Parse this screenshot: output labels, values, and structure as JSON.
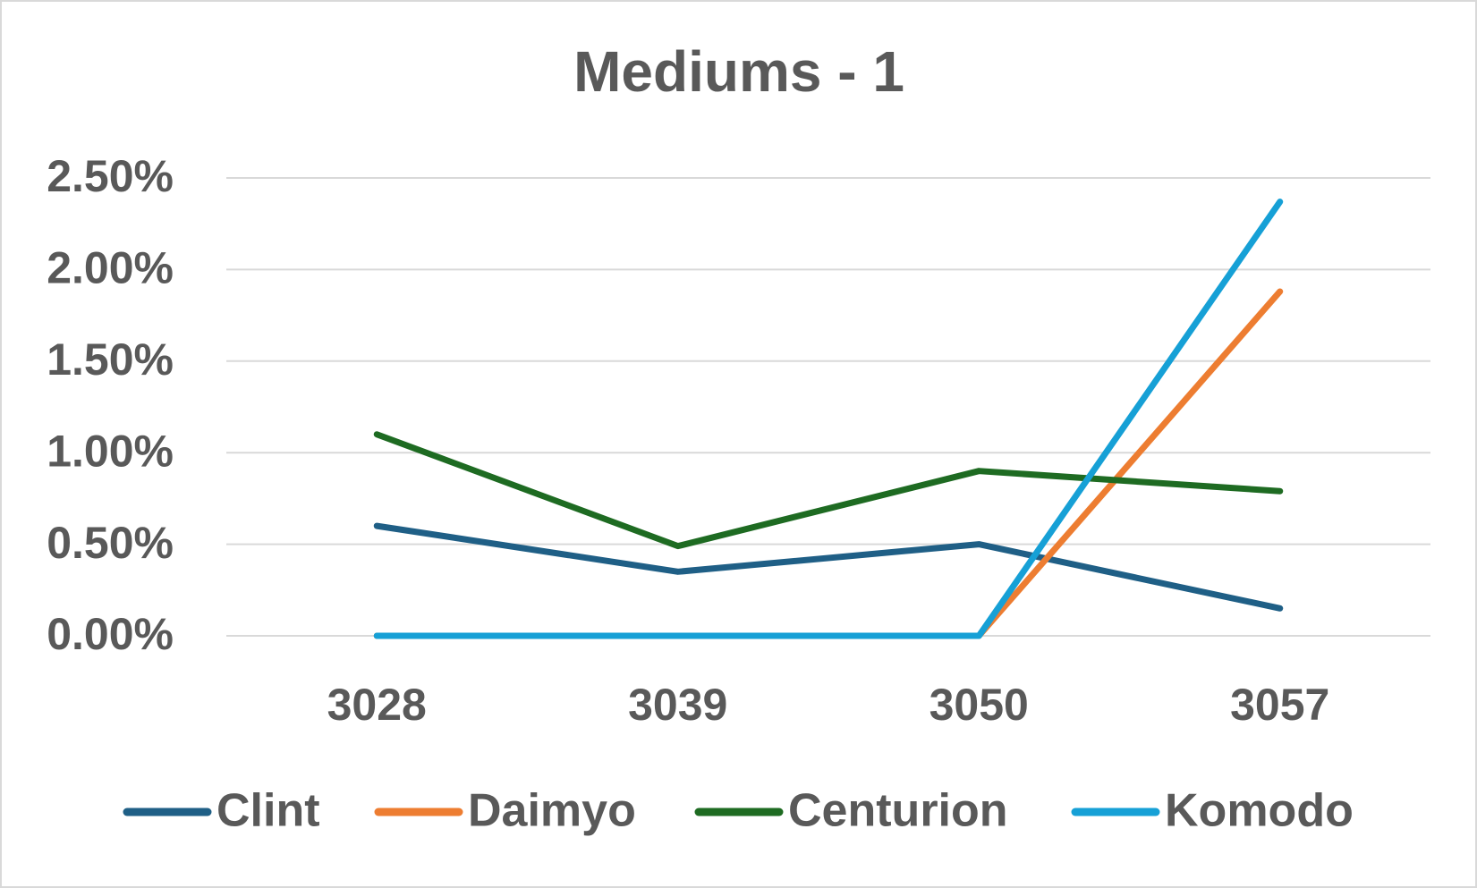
{
  "chart_data": {
    "type": "line",
    "title": "Mediums - 1",
    "categories": [
      "3028",
      "3039",
      "3050",
      "3057"
    ],
    "series": [
      {
        "name": "Clint",
        "color": "#1f5f86",
        "values": [
          0.6,
          0.35,
          0.5,
          0.15
        ]
      },
      {
        "name": "Daimyo",
        "color": "#ed7d31",
        "values": [
          0,
          0,
          0,
          1.88
        ]
      },
      {
        "name": "Centurion",
        "color": "#1e6b22",
        "values": [
          1.1,
          0.49,
          0.9,
          0.79
        ]
      },
      {
        "name": "Komodo",
        "color": "#16a0d6",
        "values": [
          0,
          0,
          0,
          2.37
        ]
      }
    ],
    "ylim": [
      0,
      2.5
    ],
    "yticks": [
      {
        "value": 0,
        "label": "0.00%"
      },
      {
        "value": 0.5,
        "label": "0.50%"
      },
      {
        "value": 1,
        "label": "1.00%"
      },
      {
        "value": 1.5,
        "label": "1.50%"
      },
      {
        "value": 2,
        "label": "2.00%"
      },
      {
        "value": 2.5,
        "label": "2.50%"
      }
    ],
    "grid": true,
    "legend": "bottom"
  }
}
